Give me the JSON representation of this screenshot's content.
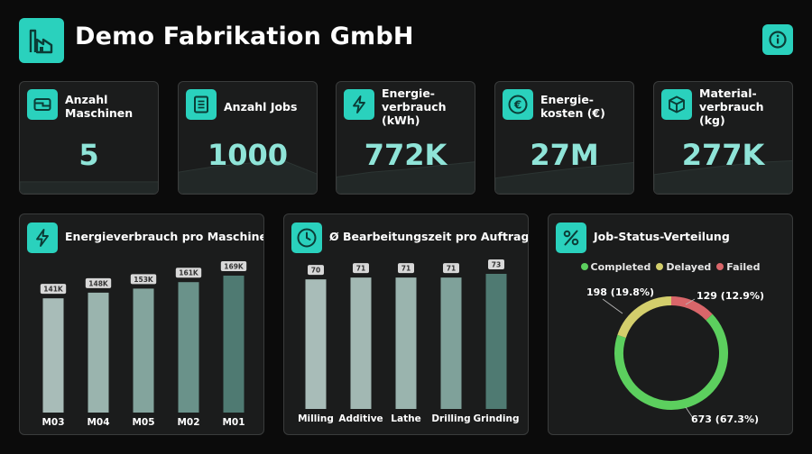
{
  "header": {
    "title": "Demo Fabrikation GmbH",
    "logo_icon": "factory-icon",
    "info_icon": "info-icon"
  },
  "colors": {
    "accent": "#2ad1bd",
    "value_text": "#8fe4d8",
    "card_bg": "#1b1c1c",
    "completed": "#5ccf5e",
    "delayed": "#d3ce6c",
    "failed": "#d9666a"
  },
  "kpis": [
    {
      "label": "Anzahl\nMaschinen",
      "value": "5",
      "icon": "machine-icon",
      "spark": [
        0.34,
        0.34,
        0.34,
        0.34,
        0.34
      ]
    },
    {
      "label": "Anzahl Jobs",
      "value": "1000",
      "icon": "list-icon",
      "spark": [
        0.62,
        0.78,
        0.88,
        0.95,
        0.55
      ]
    },
    {
      "label": "Energie-\nverbrauch\n(kWh)",
      "value": "772K",
      "icon": "lightning-icon",
      "spark": [
        0.48,
        0.62,
        0.7,
        0.82,
        0.92
      ]
    },
    {
      "label": "Energie-\nkosten (€)",
      "value": "27M",
      "icon": "euro-icon",
      "spark": [
        0.45,
        0.58,
        0.7,
        0.8,
        0.9
      ]
    },
    {
      "label": "Material-\nverbrauch (kg)",
      "value": "277K",
      "icon": "cube-icon",
      "spark": [
        0.55,
        0.68,
        0.8,
        0.9,
        0.95
      ]
    }
  ],
  "panels": {
    "energy": {
      "title": "Energieverbrauch pro Maschine",
      "icon": "lightning-icon"
    },
    "time": {
      "title": "Ø Bearbeitungszeit pro Auftrag",
      "icon": "clock-icon"
    },
    "status": {
      "title": "Job-Status-Verteilung",
      "icon": "percent-icon"
    }
  },
  "chart_data": [
    {
      "type": "bar",
      "title": "Energieverbrauch pro Maschine",
      "categories": [
        "M03",
        "M04",
        "M05",
        "M02",
        "M01"
      ],
      "values": [
        141,
        148,
        153,
        161,
        169
      ],
      "value_labels": [
        "141K",
        "148K",
        "153K",
        "161K",
        "169K"
      ],
      "bar_colors": [
        "#a8bcb8",
        "#9ab4ae",
        "#83a49d",
        "#6a928a",
        "#4f7a72"
      ],
      "ylim": [
        0,
        169
      ]
    },
    {
      "type": "bar",
      "title": "Ø Bearbeitungszeit pro Auftrag",
      "categories": [
        "Milling",
        "Additive",
        "Lathe",
        "Drilling",
        "Grinding"
      ],
      "values": [
        70,
        71,
        71,
        71,
        73
      ],
      "value_labels": [
        "70",
        "71",
        "71",
        "71",
        "73"
      ],
      "bar_colors": [
        "#a8bcb8",
        "#a2b8b3",
        "#9ab4ae",
        "#7fa19a",
        "#4f7a72"
      ],
      "ylim": [
        0,
        73
      ]
    },
    {
      "type": "pie",
      "title": "Job-Status-Verteilung",
      "categories": [
        "Completed",
        "Delayed",
        "Failed"
      ],
      "values": [
        673,
        198,
        129
      ],
      "value_labels": [
        "673 (67.3%)",
        "198 (19.8%)",
        "129 (12.9%)"
      ]
    }
  ]
}
